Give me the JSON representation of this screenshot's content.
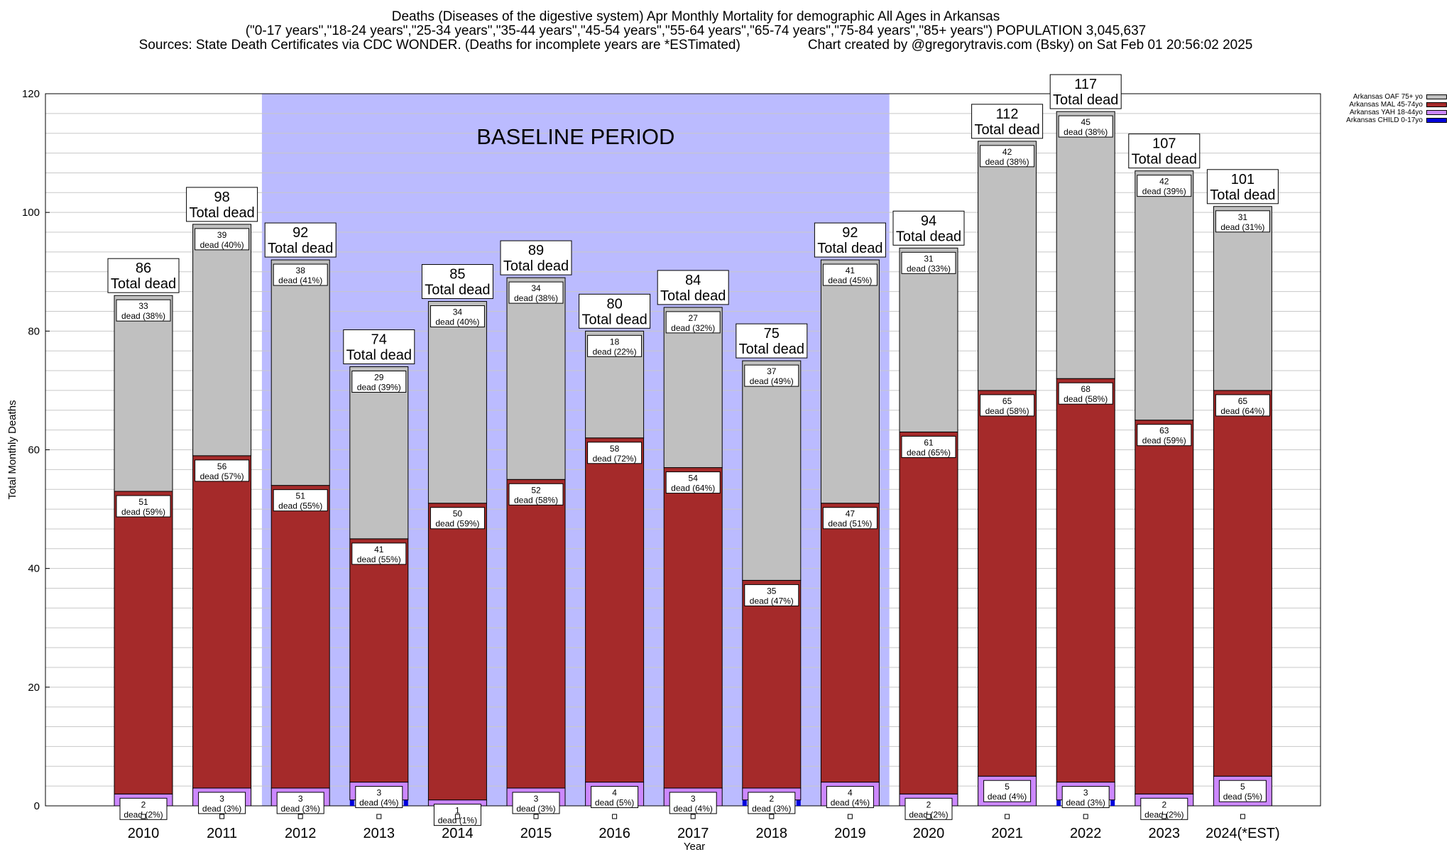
{
  "header": {
    "title_line1": "Deaths (Diseases of the digestive system) Apr Monthly Mortality for demographic All Ages in Arkansas",
    "title_line2": "(\"0-17 years\",\"18-24 years\",\"25-34 years\",\"35-44 years\",\"45-54 years\",\"55-64 years\",\"65-74 years\",\"75-84 years\",\"85+ years\") POPULATION 3,045,637",
    "title_line3_left": "Sources: State Death Certificates via CDC WONDER. (Deaths for incomplete years are *ESTimated)",
    "title_line3_right": "Chart created by @gregorytravis.com (Bsky) on Sat Feb 01 20:56:02 2025"
  },
  "chart_data": {
    "type": "bar",
    "stacked": true,
    "categories": [
      "2010",
      "2011",
      "2012",
      "2013",
      "2014",
      "2015",
      "2016",
      "2017",
      "2018",
      "2019",
      "2020",
      "2021",
      "2022",
      "2023",
      "2024(*EST)"
    ],
    "xlabel": "Year",
    "ylabel": "Total Monthly Deaths",
    "ylim": [
      0,
      120
    ],
    "yticks": [
      0,
      20,
      40,
      60,
      80,
      100,
      120
    ],
    "grid": true,
    "legend_position": "top-right",
    "baseline": {
      "label": "BASELINE PERIOD",
      "from": "2012",
      "to": "2019",
      "color": "#bbbbff"
    },
    "total_label_suffix": "Total dead",
    "segment_label_word": "dead",
    "series": [
      {
        "name": "Arkansas CHILD 0-17yo",
        "color": "#0000dd",
        "values": [
          0,
          0,
          0,
          1,
          0,
          0,
          0,
          0,
          1,
          0,
          0,
          0,
          1,
          0,
          0
        ]
      },
      {
        "name": "Arkansas YAH 18-44yo",
        "color": "#cc88ff",
        "values": [
          2,
          3,
          3,
          3,
          1,
          3,
          4,
          3,
          2,
          4,
          2,
          5,
          3,
          2,
          5
        ],
        "pcts": [
          2,
          3,
          3,
          4,
          1,
          3,
          5,
          4,
          3,
          4,
          2,
          4,
          3,
          2,
          5
        ]
      },
      {
        "name": "Arkansas MAL 45-74yo",
        "color": "#a52a2a",
        "values": [
          51,
          56,
          51,
          41,
          50,
          52,
          58,
          54,
          35,
          47,
          61,
          65,
          68,
          63,
          65
        ],
        "pcts": [
          59,
          57,
          55,
          55,
          59,
          58,
          72,
          64,
          47,
          51,
          65,
          58,
          58,
          59,
          64
        ]
      },
      {
        "name": "Arkansas OAF 75+ yo",
        "color": "#c0c0c0",
        "values": [
          33,
          39,
          38,
          29,
          34,
          34,
          18,
          27,
          37,
          41,
          31,
          42,
          45,
          42,
          31
        ],
        "pcts": [
          38,
          40,
          41,
          39,
          40,
          38,
          22,
          32,
          49,
          45,
          33,
          38,
          38,
          39,
          31
        ]
      }
    ],
    "totals": [
      86,
      98,
      92,
      74,
      85,
      89,
      80,
      84,
      75,
      92,
      94,
      112,
      117,
      107,
      101
    ]
  }
}
